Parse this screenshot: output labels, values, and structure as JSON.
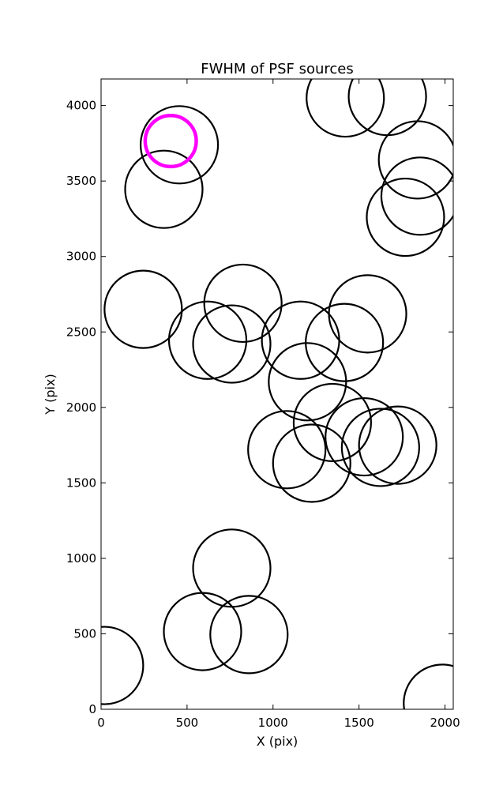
{
  "chart_data": {
    "type": "scatter",
    "title": "FWHM of PSF sources",
    "xlabel": "X (pix)",
    "ylabel": "Y (pix)",
    "xlim": [
      0,
      2048
    ],
    "ylim": [
      0,
      4176
    ],
    "xticks": [
      0,
      500,
      1000,
      1500,
      2000
    ],
    "yticks": [
      0,
      500,
      1000,
      1500,
      2000,
      2500,
      3000,
      3500,
      4000
    ],
    "xtick_labels": [
      "0",
      "500",
      "1000",
      "1500",
      "2000"
    ],
    "ytick_labels": [
      "0",
      "500",
      "1000",
      "1500",
      "2000",
      "2500",
      "3000",
      "3500",
      "4000"
    ],
    "grid": false,
    "marker": "open circle",
    "marker_color": "#000000",
    "highlight_color": "#ff00ff",
    "series": [
      {
        "points": [
          {
            "x": 20,
            "y": 290
          },
          {
            "x": 1985,
            "y": 40
          },
          {
            "x": 590,
            "y": 515
          },
          {
            "x": 860,
            "y": 495
          },
          {
            "x": 760,
            "y": 935
          },
          {
            "x": 1080,
            "y": 1720
          },
          {
            "x": 1225,
            "y": 1630
          },
          {
            "x": 1345,
            "y": 1900
          },
          {
            "x": 1530,
            "y": 1805
          },
          {
            "x": 1625,
            "y": 1735
          },
          {
            "x": 1725,
            "y": 1750
          },
          {
            "x": 1200,
            "y": 2170
          },
          {
            "x": 1160,
            "y": 2445
          },
          {
            "x": 1415,
            "y": 2430
          },
          {
            "x": 1550,
            "y": 2620
          },
          {
            "x": 620,
            "y": 2445
          },
          {
            "x": 760,
            "y": 2420
          },
          {
            "x": 825,
            "y": 2690
          },
          {
            "x": 245,
            "y": 2650
          },
          {
            "x": 365,
            "y": 3445
          },
          {
            "x": 455,
            "y": 3740
          },
          {
            "x": 1420,
            "y": 4050
          },
          {
            "x": 1665,
            "y": 4060
          },
          {
            "x": 1840,
            "y": 3640
          },
          {
            "x": 1855,
            "y": 3400
          },
          {
            "x": 1770,
            "y": 3260
          }
        ]
      },
      {
        "points": [
          {
            "x": 405,
            "y": 3765
          }
        ]
      }
    ]
  }
}
